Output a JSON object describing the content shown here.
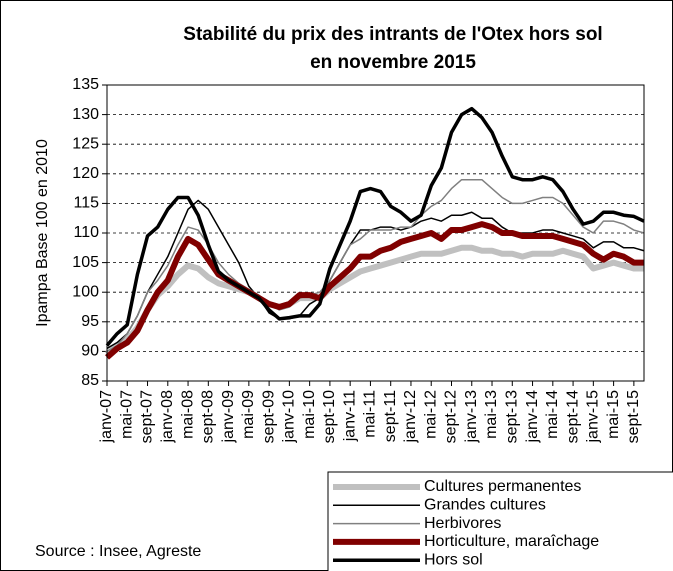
{
  "chart_data": {
    "type": "line",
    "title": [
      "Stabilité du prix des intrants de l'Otex hors sol",
      "en novembre 2015"
    ],
    "y_label": "Ipampa Base 100 en  2010",
    "source": "Source : Insee, Agreste",
    "categories": [
      "janv-07",
      null,
      "mai-07",
      null,
      "sept-07",
      null,
      "janv-08",
      null,
      "mai-08",
      null,
      "sept-08",
      null,
      "janv-09",
      null,
      "mai-09",
      null,
      "sept-09",
      null,
      "janv-10",
      null,
      "mai-10",
      null,
      "sept-10",
      null,
      "janv-11",
      null,
      "mai-11",
      null,
      "sept-11",
      null,
      "janv-12",
      null,
      "mai-12",
      null,
      "sept-12",
      null,
      "janv-13",
      null,
      "mai-13",
      null,
      "sept-13",
      null,
      "janv-14",
      null,
      "mai-14",
      null,
      "sept-14",
      null,
      "janv-15",
      null,
      "mai-15",
      null,
      "sept-15",
      null
    ],
    "ylim": [
      85,
      135
    ],
    "yticks": [
      85,
      90,
      95,
      100,
      105,
      110,
      115,
      120,
      125,
      130,
      135
    ],
    "grid": true,
    "legend": "bottom-right",
    "series": [
      {
        "name": "Cultures permanentes",
        "color": "#c0c0c0",
        "width": 6,
        "values": [
          89.5,
          91,
          92,
          94,
          97,
          99.5,
          101,
          103,
          104.5,
          104,
          102.5,
          101.5,
          101,
          100.5,
          100,
          99,
          98,
          97.5,
          98,
          99,
          99,
          99,
          100.5,
          101.5,
          102.5,
          103.5,
          104,
          104.5,
          105,
          105.5,
          106,
          106.5,
          106.5,
          106.5,
          107,
          107.5,
          107.5,
          107,
          107,
          106.5,
          106.5,
          106,
          106.5,
          106.5,
          106.5,
          107,
          106.5,
          106,
          104,
          104.5,
          105,
          104.5,
          104,
          104
        ]
      },
      {
        "name": "Grandes cultures",
        "color": "#000000",
        "width": 1.5,
        "values": [
          90.5,
          91.5,
          93,
          96,
          100,
          103,
          106,
          110,
          114,
          115.5,
          114,
          111,
          108,
          105,
          101,
          99,
          96.5,
          95.5,
          95.5,
          96,
          98,
          99,
          102,
          105,
          108,
          110.5,
          110.5,
          111,
          111,
          110.5,
          111,
          112,
          112.5,
          112,
          113,
          113,
          113.5,
          112.5,
          112.5,
          111,
          110,
          110,
          110,
          110.5,
          110.5,
          110,
          109.5,
          109,
          107.5,
          108.5,
          108.5,
          107.5,
          107.5,
          107
        ]
      },
      {
        "name": "Herbivores",
        "color": "#808080",
        "width": 1.5,
        "values": [
          90,
          91,
          93,
          96,
          100,
          102,
          104.5,
          108,
          111,
          110.5,
          108,
          105,
          103,
          101.5,
          100.5,
          99.5,
          98,
          97,
          97.5,
          99,
          99.5,
          100,
          102,
          105,
          108,
          109,
          110.5,
          110.5,
          110.5,
          111,
          111,
          113,
          114.5,
          115.5,
          117.5,
          119,
          119,
          119,
          117.5,
          116,
          115,
          115,
          115.5,
          116,
          116,
          115,
          113,
          111,
          110,
          112,
          112,
          111.5,
          110.5,
          110
        ]
      },
      {
        "name": "Horticulture, maraîchage",
        "color": "#800000",
        "width": 6,
        "values": [
          89,
          90.5,
          91.5,
          93.5,
          97,
          100,
          102,
          106,
          109,
          108,
          105.5,
          103,
          102,
          101,
          100,
          99,
          98,
          97.5,
          98,
          99.5,
          99.5,
          99,
          101,
          102.5,
          104,
          106,
          106,
          107,
          107.5,
          108.5,
          109,
          109.5,
          110,
          109,
          110.5,
          110.5,
          111,
          111.5,
          111,
          110,
          110,
          109.5,
          109.5,
          109.5,
          109.5,
          109,
          108.5,
          108,
          106.5,
          105.5,
          106.5,
          106,
          105,
          105
        ]
      },
      {
        "name": "Hors sol",
        "color": "#000000",
        "width": 3.5,
        "values": [
          91,
          93,
          94.5,
          103,
          109.5,
          111,
          114,
          116,
          116,
          113,
          108,
          103.5,
          102,
          101,
          100,
          99,
          97,
          95.5,
          95.7,
          96,
          96,
          98,
          104,
          108,
          112,
          117,
          117.5,
          117,
          114.5,
          113.5,
          112,
          113,
          118,
          121,
          127,
          130,
          131,
          129.5,
          127,
          123,
          119.5,
          119,
          119,
          119.5,
          119,
          117,
          114,
          111.5,
          112,
          113.5,
          113.5,
          113,
          112.8,
          112
        ]
      }
    ]
  }
}
